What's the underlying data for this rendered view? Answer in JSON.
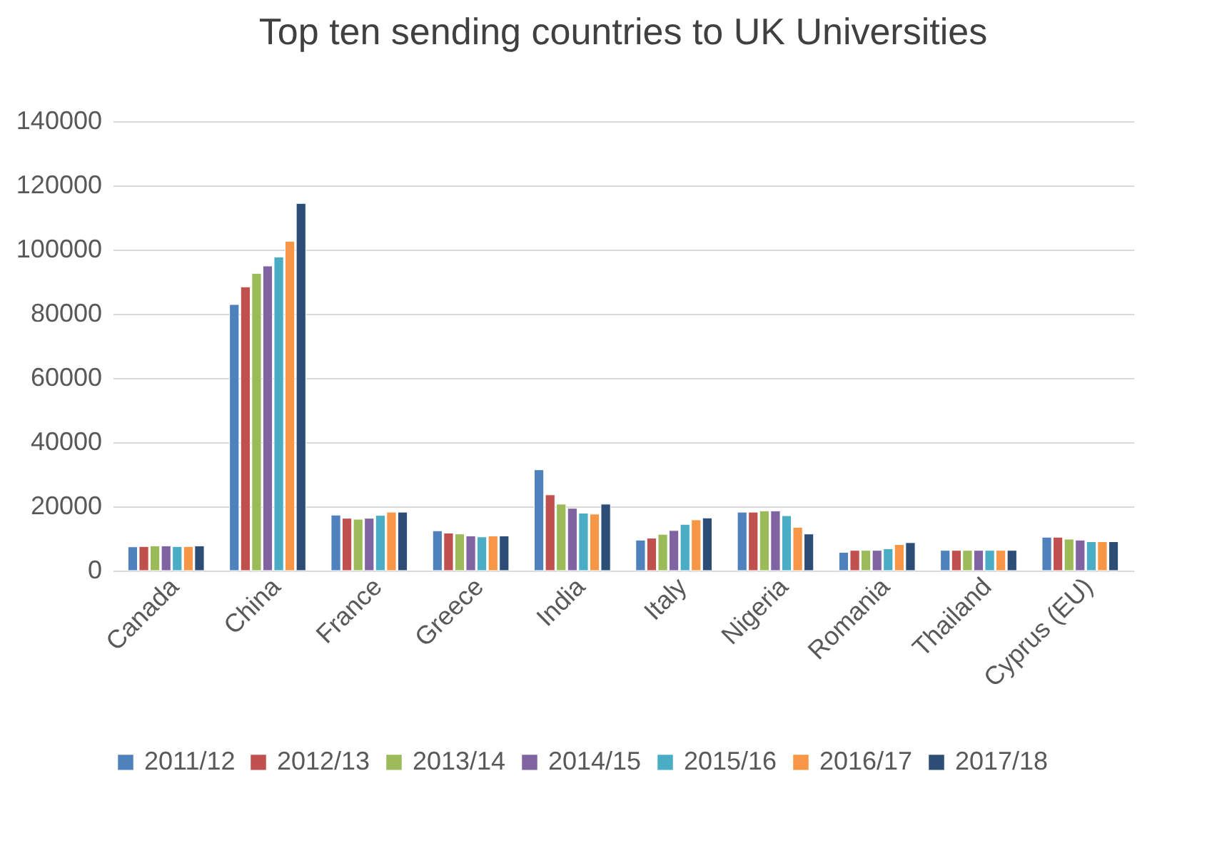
{
  "chart_data": {
    "type": "bar",
    "title": "Top ten sending countries to UK Universities",
    "categories": [
      "Canada",
      "China",
      "France",
      "Greece",
      "India",
      "Italy",
      "Nigeria",
      "Romania",
      "Thailand",
      "Cyprus (EU)"
    ],
    "series": [
      {
        "name": "2011/12",
        "color": "#4f81bd",
        "values": [
          7400,
          82900,
          17300,
          12400,
          31400,
          9500,
          18200,
          5700,
          6300,
          10400
        ]
      },
      {
        "name": "2012/13",
        "color": "#c0504d",
        "values": [
          7500,
          88400,
          16300,
          11700,
          23600,
          10100,
          18200,
          6300,
          6300,
          10400
        ]
      },
      {
        "name": "2013/14",
        "color": "#9bbb59",
        "values": [
          7700,
          92600,
          16000,
          11400,
          20700,
          11300,
          18600,
          6300,
          6300,
          9800
        ]
      },
      {
        "name": "2014/15",
        "color": "#8064a2",
        "values": [
          7700,
          94900,
          16300,
          10800,
          19400,
          12500,
          18600,
          6300,
          6300,
          9500
        ]
      },
      {
        "name": "2015/16",
        "color": "#4bacc6",
        "values": [
          7500,
          97700,
          17200,
          10500,
          17900,
          14400,
          17100,
          6800,
          6300,
          9000
        ]
      },
      {
        "name": "2016/17",
        "color": "#f79646",
        "values": [
          7500,
          102600,
          18200,
          10800,
          17600,
          15800,
          13500,
          8100,
          6300,
          9000
        ]
      },
      {
        "name": "2017/18",
        "color": "#2c4d75",
        "values": [
          7700,
          114400,
          18200,
          10800,
          20700,
          16400,
          11400,
          8700,
          6300,
          9000
        ]
      }
    ],
    "ylim": [
      0,
      140000
    ],
    "yticks": [
      0,
      20000,
      40000,
      60000,
      80000,
      100000,
      120000,
      140000
    ],
    "grid": "y",
    "legend": "bottom"
  }
}
